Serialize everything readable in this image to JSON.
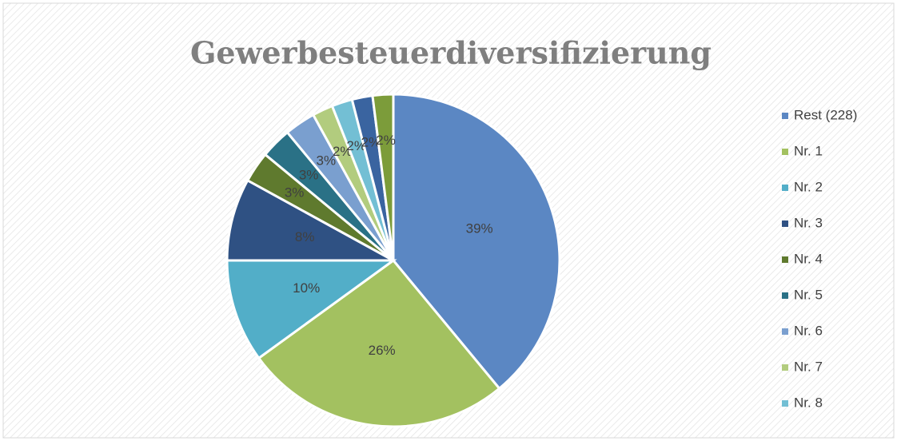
{
  "chart_data": {
    "type": "pie",
    "title": "Gewerbesteuerdiversifizierung",
    "categories": [
      "Rest (228)",
      "Nr. 1",
      "Nr. 2",
      "Nr. 3",
      "Nr. 4",
      "Nr. 5",
      "Nr. 6",
      "Nr. 7",
      "Nr. 8",
      null,
      null
    ],
    "values": [
      39,
      26,
      10,
      8,
      3,
      3,
      3,
      2,
      2,
      2,
      2
    ],
    "value_labels": [
      "39%",
      "26%",
      "10%",
      "8%",
      "3%",
      "3%",
      "3%",
      "2%",
      "2%",
      "2%",
      "2%"
    ],
    "colors": [
      "#5b87c3",
      "#a3c160",
      "#52aec8",
      "#2f5183",
      "#5f7a2e",
      "#2a7186",
      "#7a9fcf",
      "#b2cc7e",
      "#73bfd4",
      "#3a64a0",
      "#7c9c3a"
    ],
    "legend": "right"
  }
}
